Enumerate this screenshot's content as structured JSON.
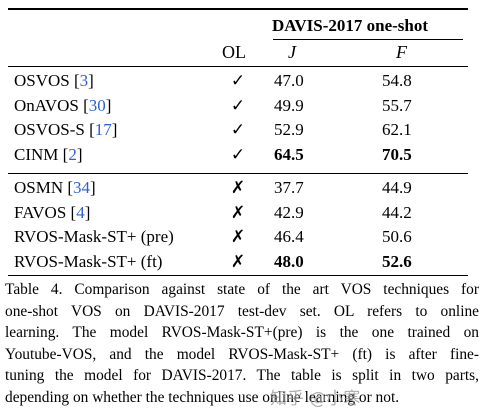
{
  "table": {
    "dataset_header": "DAVIS-2017 one-shot",
    "col_ol": "OL",
    "col_j": "J",
    "col_f": "F",
    "group1": [
      {
        "method": "OSVOS",
        "cite": "3",
        "ol": "✓",
        "j": "47.0",
        "f": "54.8",
        "bold_j": false,
        "bold_f": false
      },
      {
        "method": "OnAVOS",
        "cite": "30",
        "ol": "✓",
        "j": "49.9",
        "f": "55.7",
        "bold_j": false,
        "bold_f": false
      },
      {
        "method": "OSVOS-S",
        "cite": "17",
        "ol": "✓",
        "j": "52.9",
        "f": "62.1",
        "bold_j": false,
        "bold_f": false
      },
      {
        "method": "CINM",
        "cite": "2",
        "ol": "✓",
        "j": "64.5",
        "f": "70.5",
        "bold_j": true,
        "bold_f": true
      }
    ],
    "group2": [
      {
        "method": "OSMN",
        "cite": "34",
        "ol": "✗",
        "j": "37.7",
        "f": "44.9",
        "bold_j": false,
        "bold_f": false
      },
      {
        "method": "FAVOS",
        "cite": "4",
        "ol": "✗",
        "j": "42.9",
        "f": "44.2",
        "bold_j": false,
        "bold_f": false
      },
      {
        "method": "RVOS-Mask-ST+ (pre)",
        "cite": "",
        "ol": "✗",
        "j": "46.4",
        "f": "50.6",
        "bold_j": false,
        "bold_f": false
      },
      {
        "method": "RVOS-Mask-ST+ (ft)",
        "cite": "",
        "ol": "✗",
        "j": "48.0",
        "f": "52.6",
        "bold_j": true,
        "bold_f": true
      }
    ]
  },
  "caption": {
    "lines": [
      "Table 4. Comparison against state of the art VOS techniques for",
      "one-shot VOS on DAVIS-2017 test-dev set.  OL refers to online",
      "learning. The model RVOS-Mask-ST+(pre) is the one trained on",
      "Youtube-VOS, and the model RVOS-Mask-ST+ (ft) is after fine-",
      "tuning the model for DAVIS-2017. The table is split in two parts,",
      "depending on whether the techniques use online learning or not."
    ]
  },
  "watermark": "知乎 @小寒"
}
